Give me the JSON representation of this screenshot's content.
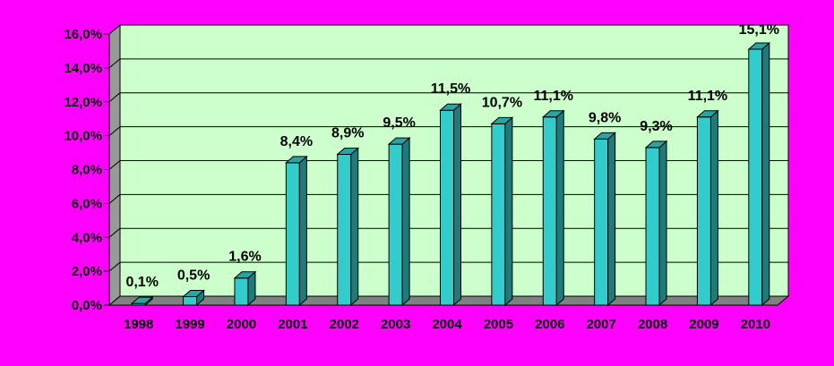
{
  "colors": {
    "background": "#ff00ff",
    "plot_area": "#ccffcc",
    "floor": "#808080",
    "bar_front": "#33cccc",
    "bar_side": "#1f7a7a",
    "bar_top": "#2aa3a3",
    "gridline": "#000000"
  },
  "chart_data": {
    "type": "bar",
    "title": "",
    "xlabel": "",
    "ylabel": "",
    "categories": [
      "1998",
      "1999",
      "2000",
      "2001",
      "2002",
      "2003",
      "2004",
      "2005",
      "2006",
      "2007",
      "2008",
      "2009",
      "2010"
    ],
    "values": [
      0.1,
      0.5,
      1.6,
      8.4,
      8.9,
      9.5,
      11.5,
      10.7,
      11.1,
      9.8,
      9.3,
      11.1,
      15.1
    ],
    "data_labels": [
      "0,1%",
      "0,5%",
      "1,6%",
      "8,4%",
      "8,9%",
      "9,5%",
      "11,5%",
      "10,7%",
      "11,1%",
      "9,8%",
      "9,3%",
      "11,1%",
      "15,1%"
    ],
    "ylim": [
      0,
      16
    ],
    "y_ticks": [
      0,
      2,
      4,
      6,
      8,
      10,
      12,
      14,
      16
    ],
    "y_tick_labels": [
      "0,0%",
      "2,0%",
      "4,0%",
      "6,0%",
      "8,0%",
      "10,0%",
      "12,0%",
      "14,0%",
      "16,0%"
    ],
    "grid": true,
    "legend": "none",
    "style": "3d-columns"
  }
}
